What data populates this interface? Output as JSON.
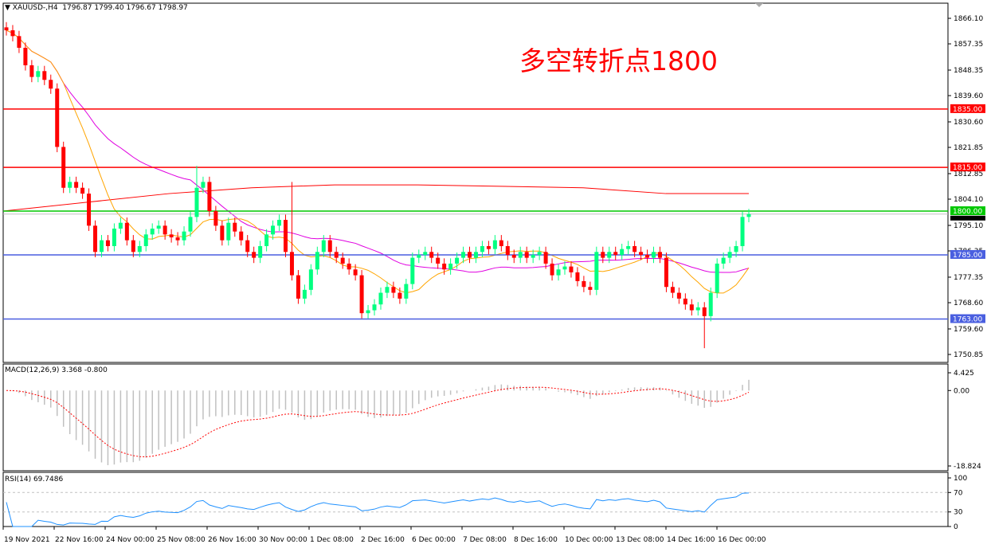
{
  "header": {
    "symbol": "XAUUSD-,H4",
    "open": "1796.87",
    "high": "1799.40",
    "low": "1796.67",
    "close": "1798.97"
  },
  "annotation": "多空转折点1800",
  "chart_data": {
    "type": "candlestick",
    "symbol": "XAUUSD-",
    "timeframe": "H4",
    "ylim": [
      1750.85,
      1866.1
    ],
    "y_ticks": [
      "1866.10",
      "1857.35",
      "1848.35",
      "1839.60",
      "1830.60",
      "1821.85",
      "1812.85",
      "1804.10",
      "1795.10",
      "1786.35",
      "1777.35",
      "1768.60",
      "1759.60",
      "1750.85"
    ],
    "x_ticks": [
      "19 Nov 2021",
      "22 Nov 16:00",
      "24 Nov 00:00",
      "25 Nov 08:00",
      "26 Nov 16:00",
      "30 Nov 00:00",
      "1 Dec 08:00",
      "2 Dec 16:00",
      "6 Dec 00:00",
      "7 Dec 08:00",
      "8 Dec 16:00",
      "10 Dec 00:00",
      "13 Dec 08:00",
      "14 Dec 16:00",
      "16 Dec 00:00"
    ],
    "close": [
      1862,
      1860,
      1856,
      1850,
      1846,
      1848,
      1845,
      1842,
      1822,
      1808,
      1810,
      1808,
      1806,
      1795,
      1786,
      1790,
      1788,
      1794,
      1796,
      1790,
      1786,
      1788,
      1792,
      1794,
      1795,
      1792,
      1791,
      1790,
      1793,
      1798,
      1808,
      1810,
      1800,
      1795,
      1790,
      1796,
      1793,
      1790,
      1786,
      1784,
      1788,
      1792,
      1795,
      1797,
      1786,
      1778,
      1770,
      1773,
      1780,
      1786,
      1790,
      1786,
      1784,
      1782,
      1780,
      1778,
      1765,
      1766,
      1768,
      1772,
      1774,
      1772,
      1770,
      1775,
      1784,
      1785,
      1786,
      1784,
      1782,
      1780,
      1782,
      1784,
      1786,
      1784,
      1786,
      1788,
      1787,
      1790,
      1788,
      1785,
      1784,
      1786,
      1784,
      1785,
      1786,
      1782,
      1778,
      1780,
      1781,
      1779,
      1776,
      1774,
      1773,
      1786,
      1784,
      1786,
      1785,
      1787,
      1788,
      1786,
      1785,
      1784,
      1786,
      1784,
      1774,
      1772,
      1770,
      1768,
      1766,
      1767,
      1764,
      1772,
      1782,
      1784,
      1786,
      1788,
      1798,
      1798.97
    ],
    "wick_extremes": [
      {
        "index": 30,
        "high": 1815.5
      },
      {
        "index": 45,
        "high": 1810
      },
      {
        "index": 110,
        "low": 1753
      }
    ],
    "moving_average_long": [
      1800,
      1803,
      1806,
      1808,
      1809,
      1809,
      1808.5,
      1808,
      1806,
      1806
    ],
    "horizontal_levels": [
      {
        "price": "1835.00",
        "color": "#ff0000"
      },
      {
        "price": "1815.00",
        "color": "#ff0000"
      },
      {
        "price": "1800.00",
        "color": "#00c800"
      },
      {
        "price": "1785.00",
        "color": "#4a5fe0"
      },
      {
        "price": "1763.00",
        "color": "#4a5fe0"
      }
    ],
    "last_price": "1798.97",
    "colors": {
      "bull": "#00ff80",
      "bear": "#ff0000",
      "ma_fast": "#ffa500",
      "ma_slow": "#e000e0",
      "ma_long": "#ff0000"
    },
    "macd": {
      "label": "MACD(12,26,9) 3.368 -0.800",
      "ylim": [
        -18.824,
        4.425
      ],
      "ticks": [
        "4.425",
        "0.00",
        "-18.824"
      ]
    },
    "rsi": {
      "label": "RSI(14) 69.7486",
      "ticks": [
        "100",
        "70",
        "30",
        "0"
      ],
      "levels": [
        70,
        30
      ]
    }
  }
}
